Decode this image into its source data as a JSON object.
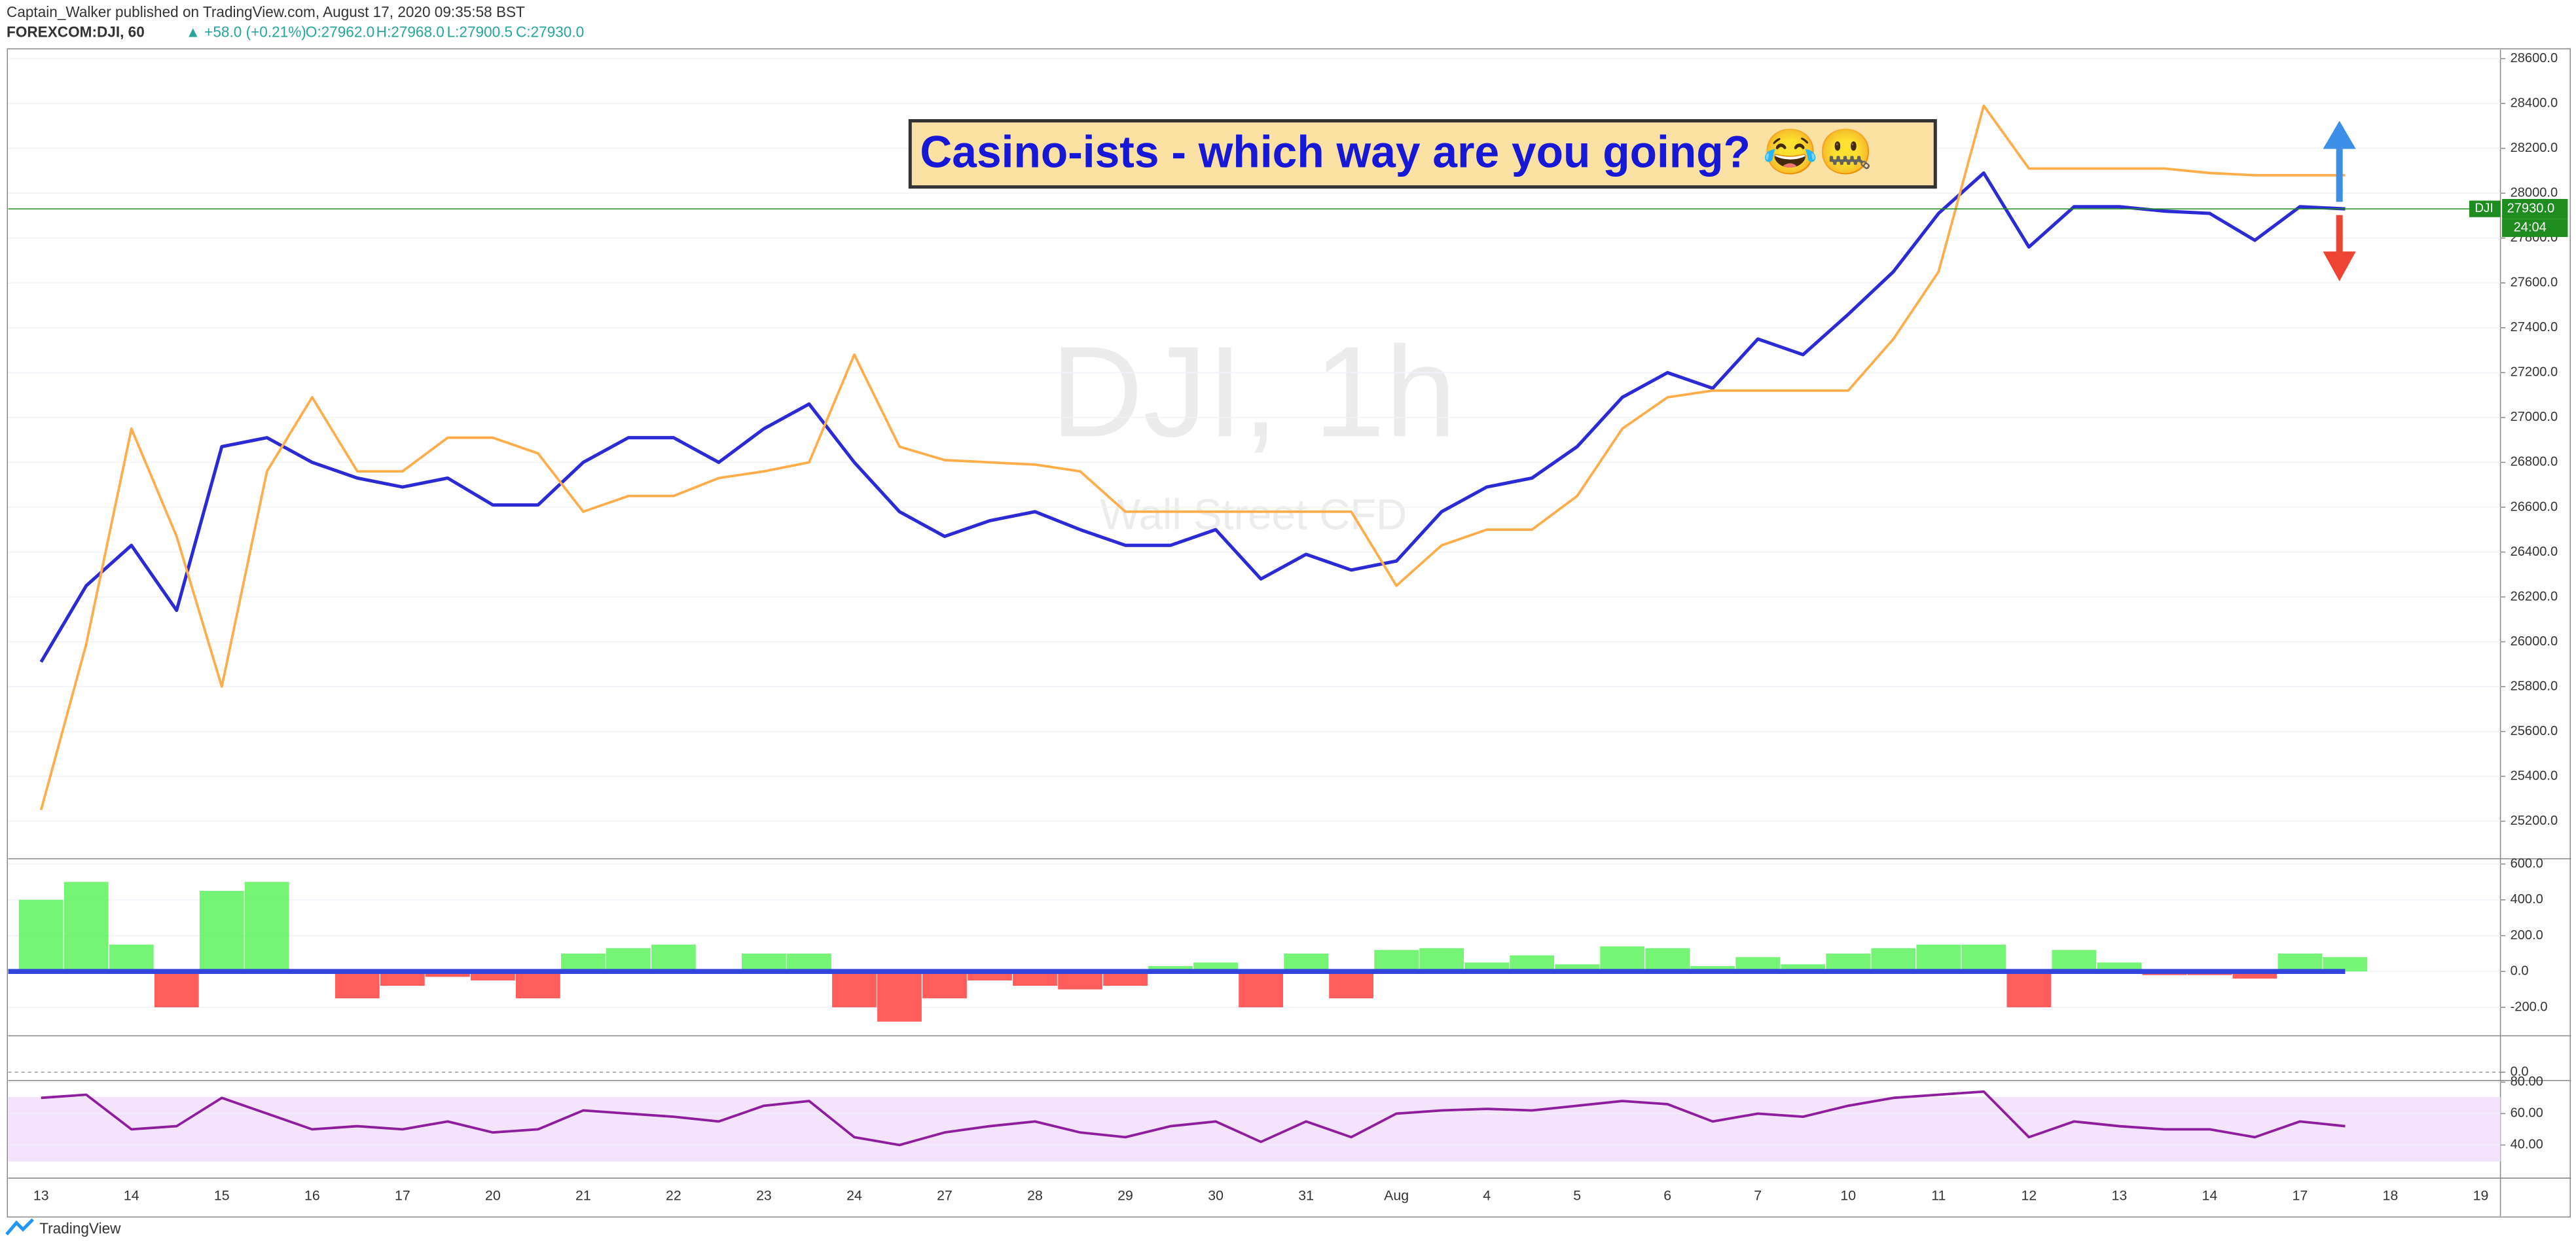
{
  "chart_data": [
    {
      "type": "line",
      "title": "FOREXCOM:DJI, 60",
      "subtitle": "Captain_Walker published on TradingView.com, August 17, 2020 09:35:58 BST",
      "quote_change": "▲ +58.0 (+0.21%)",
      "quote_open": "O:27962.0",
      "quote_high": "H:27968.0",
      "quote_low": "L:27900.5",
      "quote_close": "C:27930.0",
      "watermark": "DJI, 1h",
      "watermark_subtitle": "Wall Street CFD",
      "annotation": "Casino-ists - which way are you going? 😂🤐",
      "brand": "TradingView",
      "price_line": {
        "value": 27930,
        "label": "27930.0",
        "symbol": "DJI",
        "countdown": "24:04",
        "color": "#1e8c1e"
      },
      "categories": [
        "13",
        null,
        "14",
        null,
        "15",
        null,
        "16",
        null,
        "17",
        null,
        "20",
        null,
        "21",
        null,
        "22",
        null,
        "23",
        null,
        "24",
        null,
        "27",
        null,
        "28",
        null,
        "29",
        null,
        "30",
        null,
        "31",
        null,
        "Aug",
        null,
        "4",
        null,
        "5",
        null,
        "6",
        null,
        "7",
        null,
        "10",
        null,
        "11",
        null,
        "12",
        null,
        "13",
        null,
        "14",
        null,
        "17",
        null,
        "18",
        null,
        "19"
      ],
      "series": [
        {
          "color": "#2b2bd6",
          "values": [
            25910,
            26250,
            26430,
            26140,
            26870,
            26910,
            26800,
            26730,
            26690,
            26730,
            26610,
            26610,
            26800,
            26910,
            26910,
            26800,
            26950,
            27060,
            26800,
            26580,
            26470,
            26540,
            26580,
            26500,
            26430,
            26430,
            26500,
            26280,
            26390,
            26320,
            26360,
            26580,
            26690,
            26730,
            26870,
            27090,
            27200,
            27130,
            27350,
            27280,
            27460,
            27650,
            27910,
            28090,
            27760,
            27940,
            27940,
            27920,
            27910,
            27790,
            27940,
            27930,
            null,
            null,
            null
          ]
        },
        {
          "color": "#ffad4a",
          "values": [
            25250,
            25990,
            26950,
            26470,
            25800,
            26760,
            27090,
            26760,
            26760,
            26910,
            26910,
            26840,
            26580,
            26650,
            26650,
            26730,
            26760,
            26800,
            27280,
            26870,
            26810,
            26800,
            26790,
            26760,
            26580,
            26580,
            26580,
            26580,
            26580,
            26580,
            26250,
            26430,
            26500,
            26500,
            26650,
            26950,
            27090,
            27120,
            27120,
            27120,
            27120,
            27350,
            27650,
            28390,
            28110,
            28110,
            28110,
            28110,
            28090,
            28080,
            28080,
            28080,
            null,
            null,
            null
          ]
        }
      ],
      "ylim": [
        25040,
        28640
      ],
      "yticks": [
        {
          "value": 25200,
          "label": "25200.0"
        },
        {
          "value": 25400,
          "label": "25400.0"
        },
        {
          "value": 25600,
          "label": "25600.0"
        },
        {
          "value": 25800,
          "label": "25800.0"
        },
        {
          "value": 26000,
          "label": "26000.0"
        },
        {
          "value": 26200,
          "label": "26200.0"
        },
        {
          "value": 26400,
          "label": "26400.0"
        },
        {
          "value": 26600,
          "label": "26600.0"
        },
        {
          "value": 26800,
          "label": "26800.0"
        },
        {
          "value": 27000,
          "label": "27000.0"
        },
        {
          "value": 27200,
          "label": "27200.0"
        },
        {
          "value": 27400,
          "label": "27400.0"
        },
        {
          "value": 27600,
          "label": "27600.0"
        },
        {
          "value": 27800,
          "label": "27800.0"
        },
        {
          "value": 28000,
          "label": "28000.0"
        },
        {
          "value": 28200,
          "label": "28200.0"
        },
        {
          "value": 28400,
          "label": "28400.0"
        },
        {
          "value": 28600,
          "label": "28600.0"
        }
      ],
      "grid": true
    },
    {
      "type": "bar",
      "values": [
        400,
        500,
        150,
        -200,
        450,
        500,
        0,
        -150,
        -80,
        -30,
        -50,
        -150,
        100,
        130,
        150,
        0,
        100,
        100,
        -200,
        -280,
        -150,
        -50,
        -80,
        -100,
        -80,
        30,
        50,
        -200,
        100,
        -150,
        120,
        130,
        50,
        90,
        40,
        140,
        130,
        30,
        80,
        40,
        100,
        130,
        150,
        150,
        -200,
        120,
        50,
        -20,
        -20,
        -40,
        100,
        80,
        null,
        null,
        null
      ],
      "positive_color": "#5df25d",
      "negative_color": "#ff4040",
      "ylim": [
        -350,
        620
      ],
      "yticks": [
        {
          "value": 600,
          "label": "600.0"
        },
        {
          "value": 400,
          "label": "400.0"
        },
        {
          "value": 200,
          "label": "200.0"
        },
        {
          "value": 0,
          "label": "0.0"
        },
        {
          "value": -200,
          "label": "-200.0"
        }
      ],
      "grid": true
    },
    {
      "type": "line",
      "ylim": [
        0,
        100
      ],
      "yticks": [
        {
          "value": 0,
          "label": "0.0"
        }
      ],
      "grid": true
    },
    {
      "type": "line",
      "series": [
        {
          "color": "#8e1e9e",
          "values": [
            70,
            72,
            50,
            52,
            70,
            60,
            50,
            52,
            50,
            55,
            48,
            50,
            62,
            60,
            58,
            55,
            65,
            68,
            45,
            40,
            48,
            52,
            55,
            48,
            45,
            52,
            55,
            42,
            55,
            45,
            60,
            62,
            63,
            62,
            65,
            68,
            66,
            55,
            60,
            58,
            65,
            70,
            72,
            74,
            45,
            55,
            52,
            50,
            50,
            45,
            55,
            52,
            null,
            null,
            null
          ]
        }
      ],
      "ylim": [
        20,
        80
      ],
      "yticks": [
        {
          "value": 80,
          "label": "80.00"
        },
        {
          "value": 60,
          "label": "60.00"
        },
        {
          "value": 40,
          "label": "40.00"
        }
      ],
      "grid": true
    }
  ]
}
